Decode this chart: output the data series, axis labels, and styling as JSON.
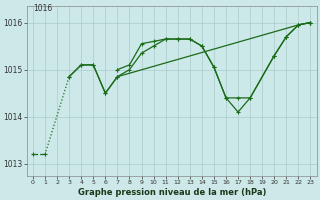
{
  "title": "Graphe pression niveau de la mer (hPa)",
  "bg_color": "#cce8e8",
  "grid_color": "#aacccc",
  "line_color": "#1a6b1a",
  "line1": {
    "x": [
      0,
      1,
      3,
      4,
      5,
      6,
      7,
      22,
      23
    ],
    "y": [
      1013.2,
      1013.2,
      1014.85,
      1015.1,
      1015.1,
      1014.5,
      1014.85,
      1015.95,
      1016.0
    ],
    "dashed": true
  },
  "line2": {
    "x": [
      3,
      4,
      5,
      6,
      7,
      8,
      9,
      10,
      11,
      12,
      13,
      14,
      15,
      16,
      17,
      18,
      20,
      21,
      22,
      23
    ],
    "y": [
      1014.85,
      1015.1,
      1015.1,
      1014.5,
      1014.85,
      1015.0,
      1015.35,
      1015.5,
      1015.65,
      1015.65,
      1015.65,
      1015.5,
      1015.05,
      1014.4,
      1014.4,
      1014.4,
      1015.3,
      1015.7,
      1015.95,
      1016.0
    ]
  },
  "line3": {
    "x": [
      7,
      8,
      9,
      10,
      11,
      12,
      13,
      14,
      15,
      16,
      17,
      18,
      20,
      21,
      22,
      23
    ],
    "y": [
      1015.0,
      1015.1,
      1015.55,
      1015.6,
      1015.65,
      1015.65,
      1015.65,
      1015.5,
      1015.05,
      1014.4,
      1014.1,
      1014.4,
      1015.3,
      1015.7,
      1015.95,
      1016.0
    ]
  },
  "ylim": [
    1012.75,
    1016.35
  ],
  "yticks": [
    1013,
    1014,
    1015,
    1016
  ],
  "yticklabels": [
    "1013",
    "1014",
    "1015",
    "1016"
  ],
  "xlim": [
    -0.5,
    23.5
  ],
  "xticks": [
    0,
    1,
    2,
    3,
    4,
    5,
    6,
    7,
    8,
    9,
    10,
    11,
    12,
    13,
    14,
    15,
    16,
    17,
    18,
    19,
    20,
    21,
    22,
    23
  ],
  "figsize": [
    3.2,
    2.0
  ],
  "dpi": 100
}
